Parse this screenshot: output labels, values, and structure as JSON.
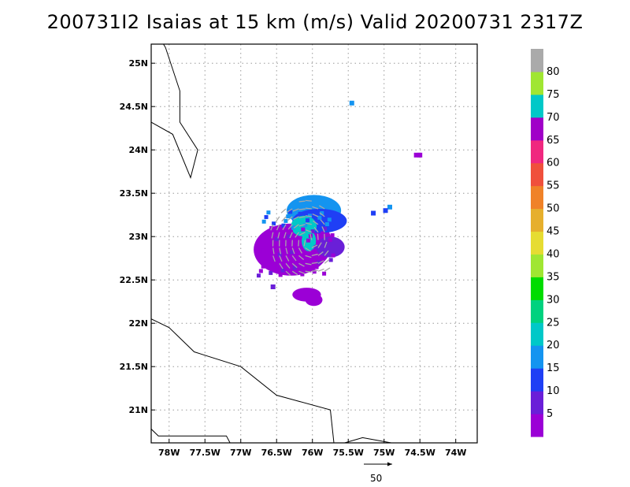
{
  "title": "200731I2 Isaias at 15 km (m/s) Valid 20200731 2317Z",
  "axes": {
    "lon_labels": [
      "78W",
      "77.5W",
      "77W",
      "76.5W",
      "76W",
      "75.5W",
      "75W",
      "74.5W",
      "74W"
    ],
    "lon_values": [
      -78,
      -77.5,
      -77,
      -76.5,
      -76,
      -75.5,
      -75,
      -74.5,
      -74
    ],
    "lat_labels": [
      "21N",
      "21.5N",
      "22N",
      "22.5N",
      "23N",
      "23.5N",
      "24N",
      "24.5N",
      "25N"
    ],
    "lat_values": [
      21,
      21.5,
      22,
      22.5,
      23,
      23.5,
      24,
      24.5,
      25
    ],
    "lon_range": [
      -78.25,
      -73.7
    ],
    "lat_range": [
      20.62,
      25.22
    ],
    "grid": true
  },
  "colorbar": {
    "labels": [
      "5",
      "10",
      "15",
      "20",
      "25",
      "30",
      "35",
      "40",
      "45",
      "50",
      "55",
      "60",
      "65",
      "70",
      "75",
      "80"
    ],
    "colors": [
      "#9b00d6",
      "#6a1fd8",
      "#1f3ff5",
      "#1494f0",
      "#00c8c8",
      "#00d27f",
      "#00dc00",
      "#a0e632",
      "#e6dc32",
      "#e6af2d",
      "#f08228",
      "#f0503c",
      "#f0287f",
      "#a000c8",
      "#00c8c8",
      "#a0e632",
      "#aaaaaa"
    ]
  },
  "reference_vector": {
    "label": "50",
    "units": "m/s"
  },
  "colors": {
    "coastline": "#000000",
    "grid": "#999999",
    "vector": "#a8a8a8"
  }
}
